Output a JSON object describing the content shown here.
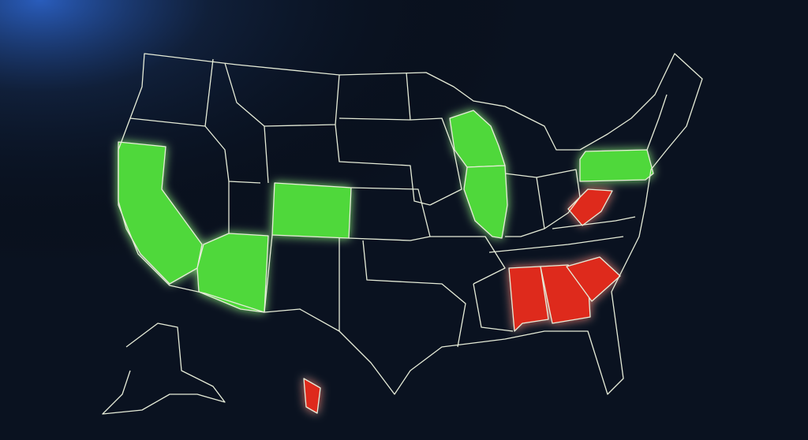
{
  "map": {
    "background": "#0a1220",
    "border_color": "#e6ecd8",
    "highlight_green": "#4fd83a",
    "highlight_red": "#de2a1e"
  }
}
